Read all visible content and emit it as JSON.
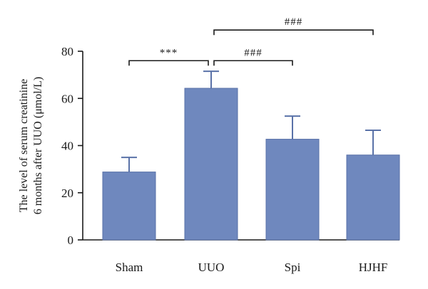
{
  "chart_data": {
    "type": "bar",
    "categories": [
      "Sham",
      "UUO",
      "Spi",
      "HJHF"
    ],
    "values": [
      28.8,
      64.3,
      42.7,
      36.0
    ],
    "error_upper": [
      35.0,
      71.5,
      52.5,
      46.5
    ],
    "ylabel_line1": "The level of serum creatinine",
    "ylabel_line2": "6 months after UUO (μmol/L)",
    "ylim": [
      0,
      80
    ],
    "yticks": [
      0,
      20,
      40,
      60,
      80
    ],
    "grid": false,
    "bar_color": "#6f88be",
    "error_color": "#5a72a8",
    "significance": [
      {
        "from": 0,
        "to": 1,
        "label": "***",
        "level": 76
      },
      {
        "from": 1,
        "to": 2,
        "label": "###",
        "level": 76
      },
      {
        "from": 1,
        "to": 3,
        "label": "###",
        "level": 89
      }
    ]
  }
}
